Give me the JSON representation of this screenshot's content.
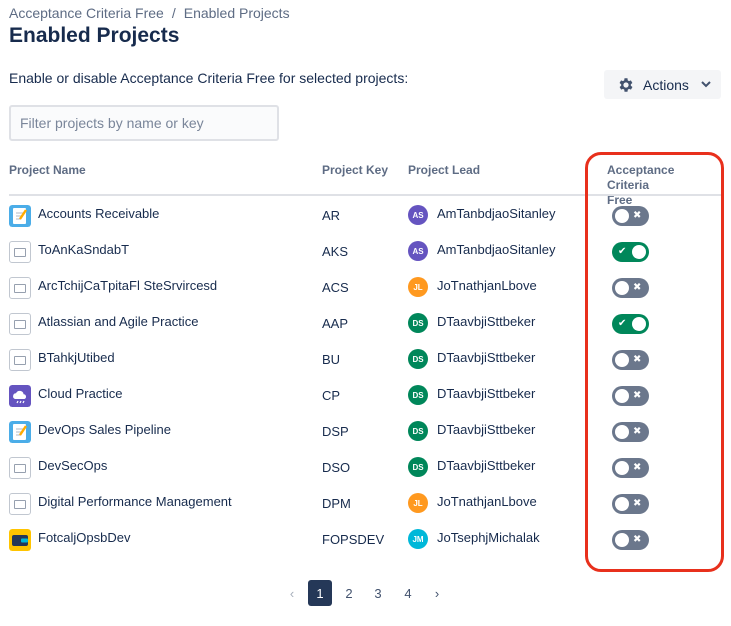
{
  "breadcrumb": {
    "app": "Acceptance Criteria Free",
    "separator": "/",
    "current": "Enabled Projects"
  },
  "page": {
    "title": "Enabled Projects",
    "description": "Enable or disable Acceptance Criteria Free for selected projects:"
  },
  "actions": {
    "label": "Actions",
    "icon": "gear-icon",
    "chevron": "chevron-down-icon"
  },
  "filter": {
    "placeholder": "Filter projects by name or key",
    "value": ""
  },
  "table": {
    "headers": {
      "name": "Project Name",
      "key": "Project Key",
      "lead": "Project Lead",
      "acf_line1": "Acceptance Criteria",
      "acf_line2": "Free"
    },
    "rows": [
      {
        "name": "Accounts Receivable",
        "key": "AR",
        "lead_initials": "AS",
        "lead_name": "AmTanbdjaoSitanley",
        "avatar_color": "#6554c0",
        "icon": "notepad",
        "enabled": false
      },
      {
        "name": "ToAnKaSndabT",
        "key": "AKS",
        "lead_initials": "AS",
        "lead_name": "AmTanbdjaoSitanley",
        "avatar_color": "#6554c0",
        "icon": "broken",
        "enabled": true
      },
      {
        "name": "ArcTchijCaTpitaFl SteSrvircesd",
        "key": "ACS",
        "lead_initials": "JL",
        "lead_name": "JoTnathjanLbove",
        "avatar_color": "#ff991f",
        "icon": "broken",
        "enabled": false
      },
      {
        "name": "Atlassian and Agile Practice",
        "key": "AAP",
        "lead_initials": "DS",
        "lead_name": "DTaavbjiSttbeker",
        "avatar_color": "#00875a",
        "icon": "broken",
        "enabled": true
      },
      {
        "name": "BTahkjUtibed",
        "key": "BU",
        "lead_initials": "DS",
        "lead_name": "DTaavbjiSttbeker",
        "avatar_color": "#00875a",
        "icon": "broken",
        "enabled": false
      },
      {
        "name": "Cloud Practice",
        "key": "CP",
        "lead_initials": "DS",
        "lead_name": "DTaavbjiSttbeker",
        "avatar_color": "#00875a",
        "icon": "cloud",
        "enabled": false
      },
      {
        "name": "DevOps Sales Pipeline",
        "key": "DSP",
        "lead_initials": "DS",
        "lead_name": "DTaavbjiSttbeker",
        "avatar_color": "#00875a",
        "icon": "notepad",
        "enabled": false
      },
      {
        "name": "DevSecOps",
        "key": "DSO",
        "lead_initials": "DS",
        "lead_name": "DTaavbjiSttbeker",
        "avatar_color": "#00875a",
        "icon": "broken",
        "enabled": false
      },
      {
        "name": "Digital Performance Management",
        "key": "DPM",
        "lead_initials": "JL",
        "lead_name": "JoTnathjanLbove",
        "avatar_color": "#ff991f",
        "icon": "broken",
        "enabled": false
      },
      {
        "name": "FotcaljOpsbDev",
        "key": "FOPSDEV",
        "lead_initials": "JM",
        "lead_name": "JoTsephjMichalak",
        "avatar_color": "#00b8d9",
        "icon": "wallet",
        "enabled": false
      }
    ]
  },
  "toggle": {
    "on_glyph": "✔",
    "off_glyph": "✖"
  },
  "pagination": {
    "prev": "‹",
    "pages": [
      "1",
      "2",
      "3",
      "4"
    ],
    "current": "1",
    "next": "›"
  },
  "colors": {
    "toggle_on": "#00875a",
    "toggle_off": "#6b778c",
    "highlight": "#e8301c",
    "current_page": "#253858"
  }
}
